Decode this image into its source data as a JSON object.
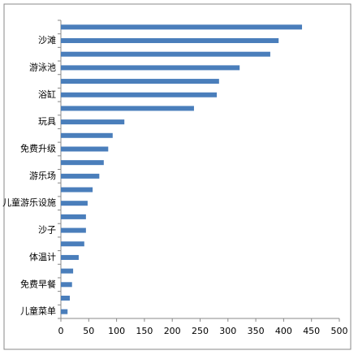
{
  "chart_data": {
    "type": "hbar",
    "categories": [
      null,
      "沙滩",
      null,
      "游泳池",
      null,
      "浴缸",
      null,
      "玩具",
      null,
      "免费升级",
      null,
      "游乐场",
      null,
      "儿童游乐设施",
      null,
      "沙子",
      null,
      "体温计",
      null,
      "免费早餐",
      null,
      "儿童菜单"
    ],
    "values": [
      433,
      391,
      376,
      321,
      284,
      280,
      239,
      114,
      93,
      85,
      77,
      69,
      57,
      48,
      45,
      45,
      42,
      32,
      22,
      20,
      16,
      12
    ],
    "color": "#4a7ebb",
    "xlim": [
      0,
      500
    ],
    "xticks": [
      0,
      50,
      100,
      150,
      200,
      250,
      300,
      350,
      400,
      450,
      500
    ]
  }
}
